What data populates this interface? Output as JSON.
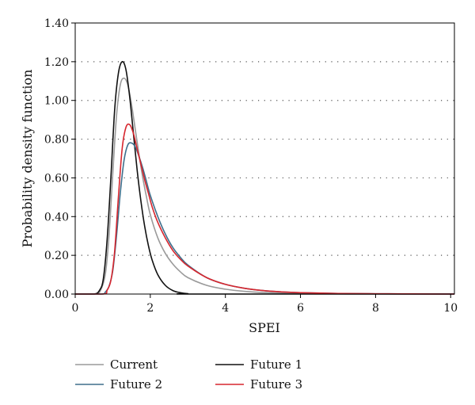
{
  "chart_data": {
    "type": "line",
    "title": "",
    "xlabel": "SPEI",
    "ylabel": "Probability density function",
    "xlim": [
      0,
      10.1
    ],
    "ylim": [
      0,
      1.4
    ],
    "x_ticks": [
      0,
      2,
      4,
      6,
      8,
      10
    ],
    "y_ticks": [
      0,
      0.2,
      0.4,
      0.6,
      0.8,
      1.0,
      1.2,
      1.4
    ],
    "x_tick_labels": [
      "0",
      "2",
      "4",
      "6",
      "8",
      "10"
    ],
    "y_tick_labels": [
      "0.00",
      "0.20",
      "0.40",
      "0.60",
      "0.80",
      "1.00",
      "1.20",
      "1.40"
    ],
    "grid": "horizontal-dotted",
    "legend_position": "bottom",
    "series": [
      {
        "name": "Current",
        "color": "#9a9a9a",
        "x": [
          0,
          0.5,
          0.65,
          0.8,
          0.9,
          1.0,
          1.1,
          1.2,
          1.3,
          1.4,
          1.5,
          1.6,
          1.7,
          1.8,
          1.9,
          2.0,
          2.2,
          2.4,
          2.6,
          2.8,
          3.0,
          3.5,
          4.0,
          4.5,
          5.0,
          6.0,
          7.0,
          8.0,
          10.1
        ],
        "y": [
          0,
          0,
          0.01,
          0.1,
          0.3,
          0.62,
          0.92,
          1.08,
          1.115,
          1.08,
          0.98,
          0.85,
          0.72,
          0.6,
          0.5,
          0.41,
          0.29,
          0.21,
          0.155,
          0.115,
          0.085,
          0.045,
          0.025,
          0.014,
          0.008,
          0.003,
          0.001,
          0.0005,
          0
        ]
      },
      {
        "name": "Future 1",
        "color": "#111111",
        "x": [
          0,
          0.5,
          0.65,
          0.75,
          0.85,
          0.95,
          1.05,
          1.15,
          1.25,
          1.35,
          1.45,
          1.55,
          1.65,
          1.75,
          1.85,
          1.95,
          2.05,
          2.2,
          2.4,
          2.6,
          2.8,
          3.0,
          3.3,
          10.1
        ],
        "y": [
          0,
          0,
          0.02,
          0.08,
          0.28,
          0.6,
          0.95,
          1.14,
          1.2,
          1.16,
          1.02,
          0.83,
          0.64,
          0.48,
          0.35,
          0.25,
          0.175,
          0.1,
          0.045,
          0.018,
          0.007,
          0.002,
          0,
          0
        ]
      },
      {
        "name": "Future 2",
        "color": "#3e6f8c",
        "x": [
          0,
          0.7,
          0.8,
          0.9,
          1.0,
          1.1,
          1.2,
          1.3,
          1.4,
          1.5,
          1.6,
          1.7,
          1.8,
          1.9,
          2.0,
          2.2,
          2.4,
          2.6,
          2.8,
          3.0,
          3.5,
          4.0,
          4.5,
          5.0,
          5.5,
          6.0,
          7.0,
          8.0,
          9.0,
          10.1
        ],
        "y": [
          0,
          0,
          0.01,
          0.04,
          0.12,
          0.3,
          0.52,
          0.69,
          0.77,
          0.78,
          0.76,
          0.71,
          0.65,
          0.58,
          0.51,
          0.4,
          0.31,
          0.24,
          0.19,
          0.15,
          0.085,
          0.05,
          0.03,
          0.018,
          0.011,
          0.007,
          0.003,
          0.0015,
          0.0007,
          0
        ]
      },
      {
        "name": "Future 3",
        "color": "#d7262e",
        "x": [
          0,
          0.75,
          0.85,
          0.95,
          1.05,
          1.15,
          1.25,
          1.35,
          1.45,
          1.55,
          1.65,
          1.75,
          1.85,
          1.95,
          2.05,
          2.2,
          2.4,
          2.6,
          2.8,
          3.0,
          3.5,
          4.0,
          4.5,
          5.0,
          5.5,
          6.0,
          7.0,
          8.0,
          9.0,
          10.1
        ],
        "y": [
          0,
          0,
          0.02,
          0.07,
          0.22,
          0.5,
          0.75,
          0.86,
          0.875,
          0.83,
          0.75,
          0.67,
          0.59,
          0.52,
          0.45,
          0.37,
          0.29,
          0.225,
          0.18,
          0.145,
          0.085,
          0.05,
          0.03,
          0.018,
          0.011,
          0.007,
          0.003,
          0.0015,
          0.0007,
          0
        ]
      }
    ]
  },
  "legend": [
    {
      "label": "Current",
      "color": "#9a9a9a"
    },
    {
      "label": "Future 1",
      "color": "#111111"
    },
    {
      "label": "Future 2",
      "color": "#3e6f8c"
    },
    {
      "label": "Future 3",
      "color": "#d7262e"
    }
  ]
}
